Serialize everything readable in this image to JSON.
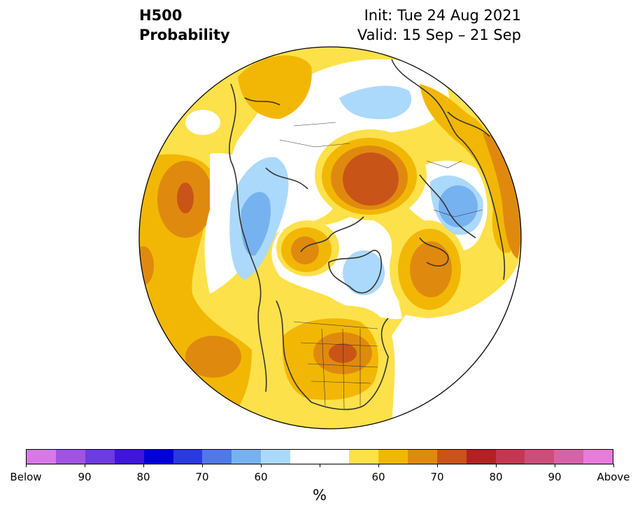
{
  "title": {
    "left_line1": "H500",
    "left_line2": "Probability",
    "right_line1": "Init: Tue 24 Aug 2021",
    "right_line2": "Valid: 15 Sep – 21 Sep"
  },
  "map": {
    "projection": "north-polar-stereographic",
    "colors": {
      "white": "#ffffff",
      "above_55": "#fde14a",
      "above_60": "#f2b705",
      "above_65": "#df8a0f",
      "above_70": "#c95418",
      "below_55": "#abd9fb",
      "below_60": "#76b2f0",
      "coast": "#333333"
    }
  },
  "colorbar": {
    "unit_label": "%",
    "segments": [
      "#d879e6",
      "#a054e0",
      "#6e3be0",
      "#3f16da",
      "#0000d8",
      "#2a3bdd",
      "#4f7ae6",
      "#76b2f0",
      "#abd9fb",
      "#ffffff",
      "#ffffff",
      "#fde14a",
      "#f2b705",
      "#df8a0f",
      "#c95418",
      "#b22222",
      "#c23850",
      "#ca4e7a",
      "#d663a8",
      "#e87bdc"
    ],
    "tick_labels": [
      {
        "text": "Below"
      },
      {
        "text": "90"
      },
      {
        "text": "80"
      },
      {
        "text": "70"
      },
      {
        "text": "60"
      },
      {
        "text": ""
      },
      {
        "text": "60"
      },
      {
        "text": "70"
      },
      {
        "text": "80"
      },
      {
        "text": "90"
      },
      {
        "text": "Above"
      }
    ]
  }
}
